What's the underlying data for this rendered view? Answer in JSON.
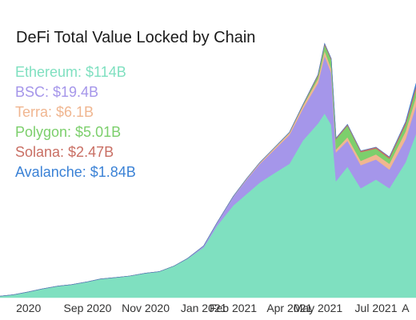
{
  "chart_data": {
    "type": "area",
    "stacked": true,
    "title": "DeFi Total Value Locked by Chain",
    "xlabel": "",
    "ylabel": "",
    "x_tick_labels": [
      "2020",
      "Sep 2020",
      "Nov 2020",
      "Jan 2021",
      "Feb 2021",
      "Apr 2021",
      "May 2021",
      "Jul 2021",
      "A"
    ],
    "x_tick_dates": [
      "2020-07-01",
      "2020-09-01",
      "2020-11-01",
      "2021-01-01",
      "2021-02-01",
      "2021-04-01",
      "2021-05-01",
      "2021-07-01",
      "2021-08-01"
    ],
    "x": [
      "2020-06-01",
      "2020-06-15",
      "2020-07-01",
      "2020-07-15",
      "2020-08-01",
      "2020-08-15",
      "2020-09-01",
      "2020-09-15",
      "2020-10-01",
      "2020-10-15",
      "2020-11-01",
      "2020-11-15",
      "2020-12-01",
      "2020-12-15",
      "2021-01-01",
      "2021-01-15",
      "2021-02-01",
      "2021-02-15",
      "2021-03-01",
      "2021-03-15",
      "2021-04-01",
      "2021-04-15",
      "2021-05-01",
      "2021-05-08",
      "2021-05-15",
      "2021-05-20",
      "2021-06-01",
      "2021-06-15",
      "2021-07-01",
      "2021-07-15",
      "2021-08-01",
      "2021-08-12"
    ],
    "series": [
      {
        "name": "Ethereum",
        "color": "#7fe0c0",
        "values": [
          1.0,
          2.0,
          4.0,
          6.0,
          8.0,
          9.0,
          11.0,
          13.0,
          14.0,
          15.0,
          17.0,
          18.0,
          22.0,
          27.0,
          35.0,
          50.0,
          64.0,
          72.0,
          80.0,
          86.0,
          93.0,
          109.0,
          121.0,
          128.0,
          120.0,
          81.0,
          91.0,
          76.0,
          82.0,
          76.0,
          94.0,
          114.0
        ]
      },
      {
        "name": "BSC",
        "color": "#a596ea",
        "values": [
          0,
          0,
          0,
          0,
          0,
          0,
          0,
          0,
          0,
          0,
          0,
          0,
          0,
          0.2,
          1.0,
          2.0,
          6.0,
          10.0,
          13.0,
          16.0,
          20.0,
          22.0,
          28.0,
          40.0,
          36.0,
          20.0,
          18.0,
          16.0,
          14.0,
          13.0,
          16.0,
          19.4
        ]
      },
      {
        "name": "Terra",
        "color": "#f0b690",
        "values": [
          0,
          0,
          0,
          0,
          0,
          0,
          0,
          0,
          0,
          0,
          0,
          0,
          0,
          0,
          0,
          0.1,
          0.3,
          0.6,
          0.9,
          1.2,
          1.5,
          2.0,
          3.0,
          3.5,
          3.0,
          2.0,
          2.5,
          3.0,
          3.5,
          4.0,
          5.5,
          6.1
        ]
      },
      {
        "name": "Polygon",
        "color": "#7ccf6c",
        "values": [
          0,
          0,
          0,
          0,
          0,
          0,
          0,
          0,
          0,
          0,
          0,
          0,
          0,
          0,
          0,
          0,
          0,
          0,
          0,
          0.1,
          0.2,
          0.5,
          2.0,
          4.0,
          6.0,
          7.0,
          8.0,
          6.0,
          4.0,
          3.5,
          4.5,
          5.01
        ]
      },
      {
        "name": "Solana",
        "color": "#c96f64",
        "values": [
          0,
          0,
          0,
          0,
          0,
          0,
          0,
          0,
          0,
          0,
          0,
          0,
          0,
          0,
          0,
          0,
          0,
          0,
          0,
          0,
          0.1,
          0.3,
          0.8,
          1.0,
          0.9,
          0.7,
          0.8,
          0.9,
          1.0,
          1.2,
          1.8,
          2.47
        ]
      },
      {
        "name": "Avalanche",
        "color": "#3b82d6",
        "values": [
          0,
          0,
          0,
          0,
          0,
          0,
          0,
          0,
          0,
          0,
          0,
          0,
          0,
          0,
          0,
          0,
          0,
          0,
          0,
          0,
          0,
          0,
          0,
          0,
          0,
          0,
          0,
          0,
          0,
          0,
          0.3,
          1.84
        ]
      }
    ],
    "legend": {
      "placement": "top-left",
      "items": [
        {
          "label": "Ethereum: $114B",
          "color": "#7fe0c0"
        },
        {
          "label": "BSC: $19.4B",
          "color": "#a596ea"
        },
        {
          "label": "Terra: $6.1B",
          "color": "#f0b690"
        },
        {
          "label": "Polygon: $5.01B",
          "color": "#7ccf6c"
        },
        {
          "label": "Solana: $2.47B",
          "color": "#c96f64"
        },
        {
          "label": "Avalanche: $1.84B",
          "color": "#3b82d6"
        }
      ]
    },
    "ylim": [
      0,
      190
    ],
    "y_axis_visible": false,
    "grid": false
  }
}
